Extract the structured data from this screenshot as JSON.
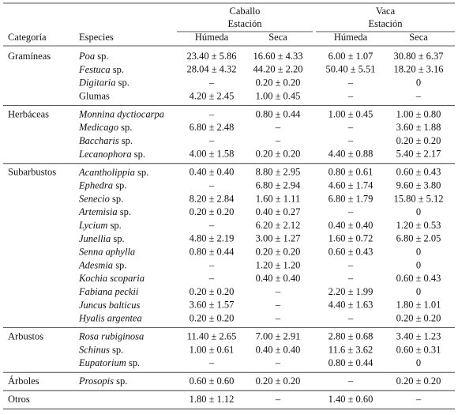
{
  "header": {
    "groups": [
      {
        "label": "Caballo",
        "sub": "Estación"
      },
      {
        "label": "Vaca",
        "sub": "Estación"
      }
    ],
    "columns": [
      "Categoría",
      "Especies",
      "Húmeda",
      "Seca",
      "Húmeda",
      "Seca"
    ]
  },
  "table": [
    {
      "category": "Gramíneas",
      "rows": [
        {
          "species": {
            "italic": "Poa",
            "plain": "sp."
          },
          "cells": [
            "23.40 ± 5.86",
            "16.60 ± 4.33",
            "6.00 ± 1.07",
            "30.80 ± 6.37"
          ]
        },
        {
          "species": {
            "italic": "Festuca",
            "plain": "sp."
          },
          "cells": [
            "28.04 ± 4.32",
            "44.20 ± 2.20",
            "50.40 ± 5.51",
            "18.20 ± 3.16"
          ]
        },
        {
          "species": {
            "italic": "Digitaria",
            "plain": "sp."
          },
          "cells": [
            "–",
            "0.20 ± 0.20",
            "–",
            "0"
          ]
        },
        {
          "species": {
            "plain": "Glumas"
          },
          "cells": [
            "4.20 ± 2.45",
            "1.00 ± 0.45",
            "–",
            "–"
          ]
        }
      ]
    },
    {
      "category": "Herbáceas",
      "rows": [
        {
          "species": {
            "italic": "Monnina dyctiocarpa"
          },
          "cells": [
            "–",
            "0.80 ± 0.44",
            "1.00 ± 0.45",
            "1.00 ± 0.80"
          ]
        },
        {
          "species": {
            "italic": "Medicago",
            "plain": "sp."
          },
          "cells": [
            "6.80 ± 2.48",
            "–",
            "–",
            "3.60 ± 1.88"
          ]
        },
        {
          "species": {
            "italic": "Baccharis",
            "plain": "sp."
          },
          "cells": [
            "–",
            "–",
            "–",
            "0.20 ± 0.20"
          ]
        },
        {
          "species": {
            "italic": "Lecanophora",
            "plain": "sp."
          },
          "cells": [
            "4.00 ± 1.58",
            "0.20 ± 0.20",
            "4.40 ± 0.88",
            "5.40 ± 2.17"
          ]
        }
      ]
    },
    {
      "category": "Subarbustos",
      "rows": [
        {
          "species": {
            "italic": "Acantholippia",
            "plain": "sp."
          },
          "cells": [
            "0.40 ± 0.40",
            "8.80 ± 2.95",
            "0.80 ± 0.61",
            "0.60 ± 0.43"
          ]
        },
        {
          "species": {
            "italic": "Ephedra",
            "plain": "sp."
          },
          "cells": [
            "–",
            "6.80 ± 2.94",
            "4.60 ± 1.74",
            "9.60 ± 3.80"
          ]
        },
        {
          "species": {
            "italic": "Senecio",
            "plain": "sp."
          },
          "cells": [
            "8.20 ± 2.84",
            "1.60 ± 1.11",
            "6.80 ± 1.79",
            "15.80 ± 5.12"
          ]
        },
        {
          "species": {
            "italic": "Artemisia",
            "plain": "sp."
          },
          "cells": [
            "0.20 ± 0.20",
            "0.40 ± 0.27",
            "–",
            "0"
          ]
        },
        {
          "species": {
            "italic": "Lycium",
            "plain": "sp."
          },
          "cells": [
            "–",
            "6.20 ± 2.12",
            "0.40 ± 0.40",
            "1.20 ± 0.53"
          ]
        },
        {
          "species": {
            "italic": "Junellia",
            "plain": "sp."
          },
          "cells": [
            "4.80 ± 2.19",
            "3.00 ± 1.27",
            "1.60 ± 0.72",
            "6.80 ± 2.05"
          ]
        },
        {
          "species": {
            "italic": "Senna aphylla"
          },
          "cells": [
            "0.80 ± 0.44",
            "0.20 ± 0.20",
            "0.60 ± 0.43",
            "0"
          ]
        },
        {
          "species": {
            "italic": "Adesmia",
            "plain": "sp."
          },
          "cells": [
            "–",
            "1.20 ± 1.20",
            "–",
            "0"
          ]
        },
        {
          "species": {
            "italic": "Kochia scoparia"
          },
          "cells": [
            "–",
            "0.40 ± 0.40",
            "–",
            "0.60 ± 0.43"
          ]
        },
        {
          "species": {
            "italic": "Fabiana peckii"
          },
          "cells": [
            "0.20 ± 0.20",
            "–",
            "2.20 ± 1.99",
            "0"
          ]
        },
        {
          "species": {
            "italic": "Juncus balticus"
          },
          "cells": [
            "3.60 ± 1.57",
            "–",
            "4.40 ± 1.63",
            "1.80 ± 1.01"
          ]
        },
        {
          "species": {
            "italic": "Hyalis argentea"
          },
          "cells": [
            "0.20 ± 0.20",
            "–",
            "–",
            "0.20 ± 0.20"
          ]
        }
      ]
    },
    {
      "category": "Arbustos",
      "rows": [
        {
          "species": {
            "italic": "Rosa rubiginosa"
          },
          "cells": [
            "11.40 ± 2.65",
            "7.00 ± 2.91",
            "2.80 ± 0.68",
            "3.40 ± 1.23"
          ]
        },
        {
          "species": {
            "italic": "Schinus",
            "plain": "sp."
          },
          "cells": [
            "1.00 ± 0.61",
            "0.40 ± 0.40",
            "11.6 ± 3.62",
            "0.60 ± 0.31"
          ]
        },
        {
          "species": {
            "italic": "Eupatorium",
            "plain": "sp."
          },
          "cells": [
            "–",
            "–",
            "0.80 ± 0.44",
            "0"
          ]
        }
      ]
    },
    {
      "category": "Árboles",
      "rows": [
        {
          "species": {
            "italic": "Prosopis",
            "plain": "sp."
          },
          "cells": [
            "0.60 ± 0.60",
            "0.20 ± 0.20",
            "–",
            "0.20 ± 0.20"
          ]
        }
      ]
    },
    {
      "category": "Otros",
      "rows": [
        {
          "cells": [
            "1.80 ± 1.12",
            "–",
            "1.40 ± 0.60",
            "–"
          ]
        }
      ]
    }
  ]
}
